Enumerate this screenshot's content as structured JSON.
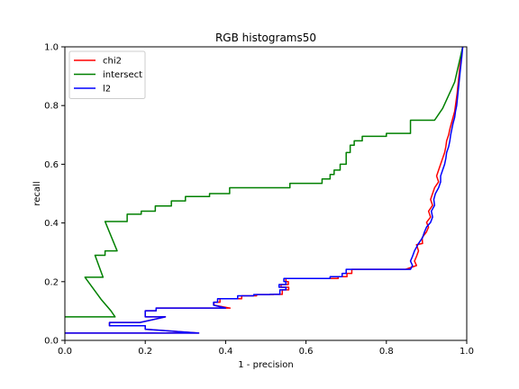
{
  "chart_data": {
    "type": "line",
    "title": "RGB histograms50",
    "xlabel": "1 - precision",
    "ylabel": "recall",
    "xlim": [
      0.0,
      1.0
    ],
    "ylim": [
      0.0,
      1.0
    ],
    "xticks": [
      "0.0",
      "0.2",
      "0.4",
      "0.6",
      "0.8",
      "1.0"
    ],
    "yticks": [
      "0.0",
      "0.2",
      "0.4",
      "0.6",
      "0.8",
      "1.0"
    ],
    "grid": false,
    "legend": "top-left",
    "series": [
      {
        "name": "chi2",
        "color": "#ff0000",
        "points": [
          [
            0.0,
            0.025
          ],
          [
            0.333,
            0.025
          ],
          [
            0.2,
            0.038
          ],
          [
            0.2,
            0.05
          ],
          [
            0.111,
            0.05
          ],
          [
            0.111,
            0.061
          ],
          [
            0.187,
            0.061
          ],
          [
            0.25,
            0.08
          ],
          [
            0.2,
            0.08
          ],
          [
            0.2,
            0.101
          ],
          [
            0.227,
            0.101
          ],
          [
            0.227,
            0.11
          ],
          [
            0.411,
            0.11
          ],
          [
            0.371,
            0.12
          ],
          [
            0.371,
            0.13
          ],
          [
            0.386,
            0.13
          ],
          [
            0.386,
            0.142
          ],
          [
            0.44,
            0.142
          ],
          [
            0.44,
            0.152
          ],
          [
            0.477,
            0.152
          ],
          [
            0.477,
            0.156
          ],
          [
            0.519,
            0.156
          ],
          [
            0.519,
            0.157
          ],
          [
            0.541,
            0.157
          ],
          [
            0.541,
            0.172
          ],
          [
            0.557,
            0.172
          ],
          [
            0.557,
            0.181
          ],
          [
            0.538,
            0.181
          ],
          [
            0.538,
            0.19
          ],
          [
            0.556,
            0.19
          ],
          [
            0.556,
            0.2
          ],
          [
            0.55,
            0.2
          ],
          [
            0.55,
            0.211
          ],
          [
            0.68,
            0.211
          ],
          [
            0.68,
            0.217
          ],
          [
            0.702,
            0.217
          ],
          [
            0.702,
            0.228
          ],
          [
            0.714,
            0.228
          ],
          [
            0.714,
            0.242
          ],
          [
            0.848,
            0.242
          ],
          [
            0.875,
            0.255
          ],
          [
            0.87,
            0.27
          ],
          [
            0.875,
            0.286
          ],
          [
            0.88,
            0.305
          ],
          [
            0.875,
            0.326
          ],
          [
            0.89,
            0.33
          ],
          [
            0.889,
            0.35
          ],
          [
            0.9,
            0.37
          ],
          [
            0.905,
            0.386
          ],
          [
            0.9,
            0.402
          ],
          [
            0.91,
            0.42
          ],
          [
            0.905,
            0.44
          ],
          [
            0.915,
            0.46
          ],
          [
            0.91,
            0.48
          ],
          [
            0.915,
            0.5
          ],
          [
            0.92,
            0.52
          ],
          [
            0.93,
            0.54
          ],
          [
            0.925,
            0.56
          ],
          [
            0.93,
            0.58
          ],
          [
            0.935,
            0.6
          ],
          [
            0.94,
            0.62
          ],
          [
            0.945,
            0.64
          ],
          [
            0.948,
            0.66
          ],
          [
            0.95,
            0.68
          ],
          [
            0.955,
            0.7
          ],
          [
            0.958,
            0.72
          ],
          [
            0.962,
            0.74
          ],
          [
            0.966,
            0.76
          ],
          [
            0.97,
            0.78
          ],
          [
            0.972,
            0.8
          ],
          [
            0.976,
            0.84
          ],
          [
            0.979,
            0.88
          ],
          [
            0.982,
            0.92
          ],
          [
            0.986,
            0.97
          ],
          [
            0.99,
            1.0
          ]
        ]
      },
      {
        "name": "intersect",
        "color": "#008000",
        "points": [
          [
            0.0,
            0.08
          ],
          [
            0.125,
            0.08
          ],
          [
            0.115,
            0.1
          ],
          [
            0.09,
            0.14
          ],
          [
            0.05,
            0.215
          ],
          [
            0.095,
            0.215
          ],
          [
            0.075,
            0.29
          ],
          [
            0.1,
            0.29
          ],
          [
            0.1,
            0.305
          ],
          [
            0.13,
            0.305
          ],
          [
            0.1,
            0.405
          ],
          [
            0.155,
            0.405
          ],
          [
            0.155,
            0.43
          ],
          [
            0.19,
            0.43
          ],
          [
            0.19,
            0.44
          ],
          [
            0.225,
            0.44
          ],
          [
            0.225,
            0.458
          ],
          [
            0.265,
            0.458
          ],
          [
            0.265,
            0.475
          ],
          [
            0.3,
            0.475
          ],
          [
            0.3,
            0.49
          ],
          [
            0.36,
            0.49
          ],
          [
            0.36,
            0.5
          ],
          [
            0.41,
            0.5
          ],
          [
            0.41,
            0.52
          ],
          [
            0.56,
            0.52
          ],
          [
            0.56,
            0.535
          ],
          [
            0.64,
            0.535
          ],
          [
            0.64,
            0.55
          ],
          [
            0.66,
            0.55
          ],
          [
            0.66,
            0.565
          ],
          [
            0.67,
            0.565
          ],
          [
            0.67,
            0.58
          ],
          [
            0.685,
            0.58
          ],
          [
            0.685,
            0.6
          ],
          [
            0.7,
            0.6
          ],
          [
            0.7,
            0.64
          ],
          [
            0.71,
            0.64
          ],
          [
            0.71,
            0.665
          ],
          [
            0.72,
            0.665
          ],
          [
            0.72,
            0.68
          ],
          [
            0.74,
            0.68
          ],
          [
            0.74,
            0.695
          ],
          [
            0.8,
            0.695
          ],
          [
            0.8,
            0.705
          ],
          [
            0.86,
            0.705
          ],
          [
            0.86,
            0.75
          ],
          [
            0.92,
            0.75
          ],
          [
            0.93,
            0.77
          ],
          [
            0.94,
            0.79
          ],
          [
            0.95,
            0.82
          ],
          [
            0.96,
            0.85
          ],
          [
            0.97,
            0.88
          ],
          [
            0.975,
            0.91
          ],
          [
            0.98,
            0.94
          ],
          [
            0.985,
            0.97
          ],
          [
            0.99,
            1.0
          ]
        ]
      },
      {
        "name": "l2",
        "color": "#0000ff",
        "points": [
          [
            0.0,
            0.025
          ],
          [
            0.333,
            0.025
          ],
          [
            0.2,
            0.038
          ],
          [
            0.2,
            0.05
          ],
          [
            0.111,
            0.05
          ],
          [
            0.111,
            0.061
          ],
          [
            0.187,
            0.061
          ],
          [
            0.25,
            0.08
          ],
          [
            0.2,
            0.08
          ],
          [
            0.2,
            0.101
          ],
          [
            0.227,
            0.101
          ],
          [
            0.227,
            0.11
          ],
          [
            0.4,
            0.11
          ],
          [
            0.37,
            0.12
          ],
          [
            0.37,
            0.13
          ],
          [
            0.38,
            0.13
          ],
          [
            0.38,
            0.142
          ],
          [
            0.43,
            0.142
          ],
          [
            0.43,
            0.152
          ],
          [
            0.47,
            0.152
          ],
          [
            0.47,
            0.156
          ],
          [
            0.51,
            0.156
          ],
          [
            0.51,
            0.157
          ],
          [
            0.535,
            0.157
          ],
          [
            0.535,
            0.172
          ],
          [
            0.55,
            0.172
          ],
          [
            0.55,
            0.181
          ],
          [
            0.533,
            0.181
          ],
          [
            0.533,
            0.19
          ],
          [
            0.55,
            0.19
          ],
          [
            0.55,
            0.2
          ],
          [
            0.545,
            0.2
          ],
          [
            0.545,
            0.211
          ],
          [
            0.66,
            0.211
          ],
          [
            0.66,
            0.217
          ],
          [
            0.69,
            0.217
          ],
          [
            0.69,
            0.228
          ],
          [
            0.7,
            0.228
          ],
          [
            0.7,
            0.242
          ],
          [
            0.86,
            0.242
          ],
          [
            0.865,
            0.255
          ],
          [
            0.86,
            0.27
          ],
          [
            0.865,
            0.286
          ],
          [
            0.87,
            0.305
          ],
          [
            0.88,
            0.33
          ],
          [
            0.89,
            0.35
          ],
          [
            0.895,
            0.37
          ],
          [
            0.9,
            0.386
          ],
          [
            0.91,
            0.402
          ],
          [
            0.915,
            0.42
          ],
          [
            0.912,
            0.44
          ],
          [
            0.92,
            0.46
          ],
          [
            0.918,
            0.48
          ],
          [
            0.922,
            0.5
          ],
          [
            0.93,
            0.52
          ],
          [
            0.935,
            0.54
          ],
          [
            0.935,
            0.56
          ],
          [
            0.94,
            0.58
          ],
          [
            0.945,
            0.6
          ],
          [
            0.948,
            0.62
          ],
          [
            0.95,
            0.64
          ],
          [
            0.955,
            0.66
          ],
          [
            0.958,
            0.68
          ],
          [
            0.96,
            0.7
          ],
          [
            0.963,
            0.72
          ],
          [
            0.966,
            0.74
          ],
          [
            0.97,
            0.76
          ],
          [
            0.972,
            0.78
          ],
          [
            0.975,
            0.8
          ],
          [
            0.978,
            0.84
          ],
          [
            0.981,
            0.88
          ],
          [
            0.984,
            0.92
          ],
          [
            0.988,
            0.97
          ],
          [
            0.99,
            1.0
          ]
        ]
      }
    ]
  }
}
